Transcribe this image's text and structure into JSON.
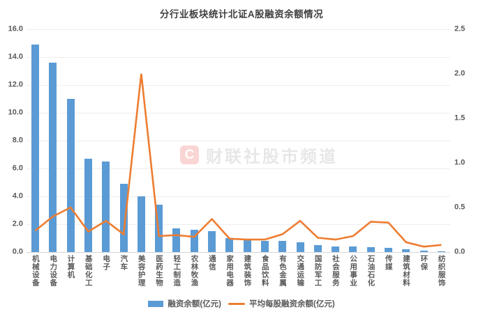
{
  "title": "分行业板块统计北证A股融资余额情况",
  "watermark": {
    "logo_letter": "C",
    "text": "财联社股市频道"
  },
  "legend": {
    "bar_label": "融资余额(亿元)",
    "line_label": "平均每股融资余额(亿元)"
  },
  "colors": {
    "bar": "#5b9bd5",
    "line": "#ed7d31",
    "axis_text": "#595959",
    "title_text": "#404040",
    "gridline": "#ededed"
  },
  "chart_data": {
    "type": "bar",
    "title": "分行业板块统计北证A股融资余额情况",
    "categories": [
      "机械设备",
      "电力设备",
      "计算机",
      "基础化工",
      "电子",
      "汽车",
      "美容护理",
      "医药生物",
      "轻工制造",
      "农林牧渔",
      "通信",
      "家用电器",
      "建筑装饰",
      "食品饮料",
      "有色金属",
      "交通运输",
      "国防军工",
      "社会服务",
      "公用事业",
      "石油石化",
      "传媒",
      "建筑材料",
      "环保",
      "纺织服饰"
    ],
    "series": [
      {
        "name": "融资余额(亿元)",
        "type": "bar",
        "axis": "left",
        "color": "#5b9bd5",
        "values": [
          14.9,
          13.6,
          11.0,
          6.7,
          6.5,
          4.9,
          4.0,
          3.4,
          1.7,
          1.6,
          1.5,
          1.0,
          0.85,
          0.8,
          0.8,
          0.7,
          0.5,
          0.4,
          0.4,
          0.35,
          0.3,
          0.2,
          0.1,
          0.05
        ]
      },
      {
        "name": "平均每股融资余额(亿元)",
        "type": "line",
        "axis": "right",
        "color": "#ed7d31",
        "values": [
          0.24,
          0.4,
          0.5,
          0.23,
          0.35,
          0.2,
          2.0,
          0.18,
          0.19,
          0.17,
          0.37,
          0.15,
          0.14,
          0.14,
          0.2,
          0.35,
          0.16,
          0.14,
          0.18,
          0.34,
          0.33,
          0.11,
          0.06,
          0.08
        ]
      }
    ],
    "left_axis": {
      "min": 0,
      "max": 16,
      "step": 2,
      "ticks": [
        "16.0",
        "14.0",
        "12.0",
        "10.0",
        "8.0",
        "6.0",
        "4.0",
        "2.0",
        "0.0"
      ]
    },
    "right_axis": {
      "min": 0,
      "max": 2.5,
      "step": 0.5,
      "ticks": [
        "2.5",
        "2.0",
        "1.5",
        "1.0",
        "0.5",
        "0.0"
      ]
    },
    "grid": "horizontal",
    "legend_position": "bottom"
  }
}
